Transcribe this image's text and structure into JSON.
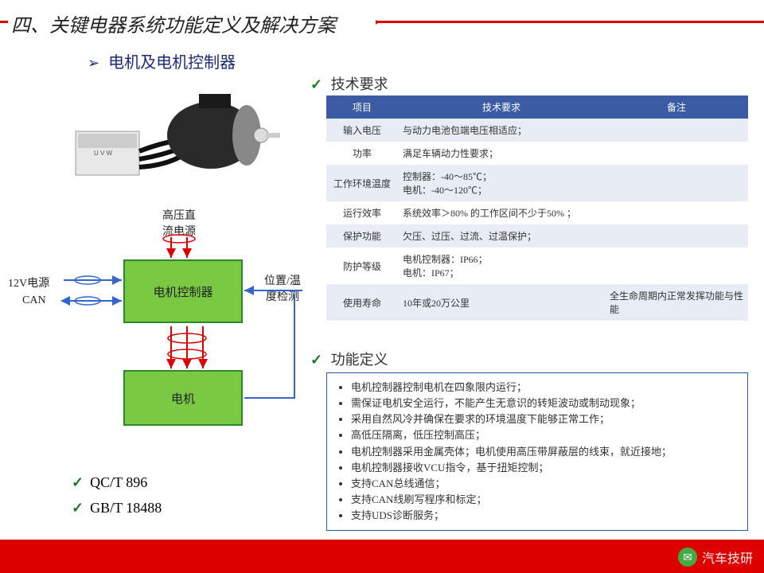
{
  "title": "四、关键电器系统功能定义及解决方案",
  "subtitle": "电机及电机控制器",
  "section_tech": "技术要求",
  "section_func": "功能定义",
  "standards": [
    "QC/T 896",
    "GB/T 18488"
  ],
  "table": {
    "headers": [
      "项目",
      "技术要求",
      "备注"
    ],
    "rows": [
      [
        "输入电压",
        "与动力电池包端电压相适应；",
        ""
      ],
      [
        "功率",
        "满足车辆动力性要求；",
        ""
      ],
      [
        "工作环境温度",
        "控制器：-40～85℃；\n电机：-40～120℃；",
        ""
      ],
      [
        "运行效率",
        "系统效率＞80% 的工作区间不少于50% ；",
        ""
      ],
      [
        "保护功能",
        "欠压、过压、过流、过温保护；",
        ""
      ],
      [
        "防护等级",
        "电机控制器：IP66；\n电机：IP67；",
        ""
      ],
      [
        "使用寿命",
        "10年或20万公里",
        "全生命周期内正常发挥功能与性能"
      ]
    ]
  },
  "func_list": [
    "电机控制器控制电机在四象限内运行；",
    "需保证电机安全运行，不能产生无意识的转矩波动或制动现象；",
    "采用自然风冷并确保在要求的环境温度下能够正常工作；",
    "高低压隔离，低压控制高压；",
    "电机控制器采用金属壳体；电机使用高压带屏蔽层的线束，就近接地；",
    "电机控制器接收VCU指令，基于扭矩控制；",
    "支持CAN总线通信；",
    "支持CAN线刷写程序和标定；",
    "支持UDS诊断服务；"
  ],
  "diagram": {
    "box_controller": "电机控制器",
    "box_motor": "电机",
    "lbl_hvdc": "高压直\n流电源",
    "lbl_12v": "12V电源",
    "lbl_can": "CAN",
    "lbl_pos": "位置/温\n度检测",
    "colors": {
      "block_fill": "#7ac943",
      "block_border": "#2a8a2a",
      "arrow_red": "#dd0000",
      "arrow_blue": "#3366cc"
    }
  },
  "watermark": "汽车技研",
  "colors": {
    "accent_red": "#d00",
    "header_blue": "#3b5ba5",
    "row_alt": "#e8edf5",
    "border_blue": "#2a5ab0"
  }
}
